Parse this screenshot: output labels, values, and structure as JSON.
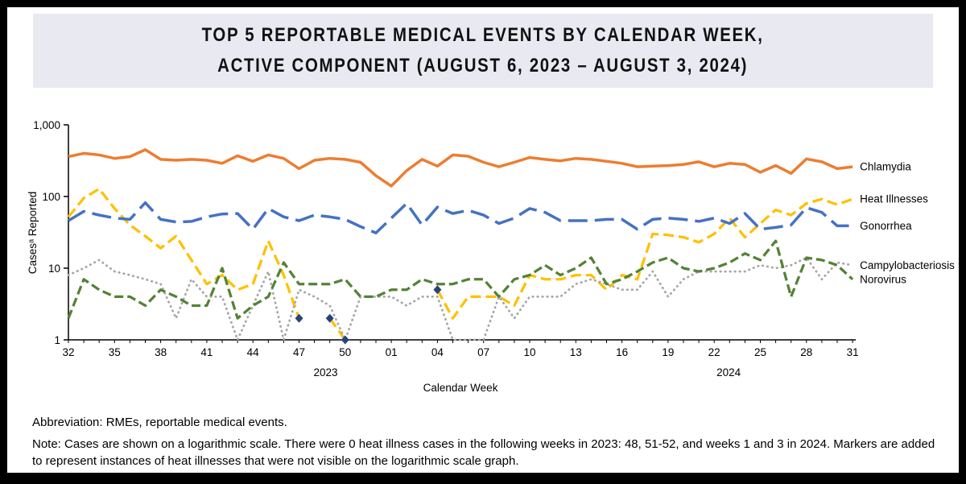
{
  "title": {
    "line1": "TOP 5 REPORTABLE MEDICAL EVENTS BY CALENDAR WEEK,",
    "line2": "ACTIVE COMPONENT (AUGUST 6, 2023 – AUGUST 3, 2024)"
  },
  "footnotes": {
    "abbreviation": "Abbreviation: RMEs, reportable medical events.",
    "note": "Note: Cases are shown on a logarithmic scale. There were 0 heat illness cases in the following weeks in 2023: 48, 51-52, and weeks 1 and 3 in 2024. Markers are added to represent instances of heat illnesses that were not visible on the logarithmic scale graph."
  },
  "theme": {
    "banner_bg": "#E9E9F1",
    "frame_color": "#000000"
  },
  "chart_data": {
    "type": "line",
    "y_scale": "log10",
    "ylim": [
      1,
      1000
    ],
    "grid": false,
    "legend_position": "right-end-of-line",
    "ylabel": "Casesᵃ Reported",
    "xlabel": "Calendar Week",
    "y_tick_labels": [
      "1,000",
      "100",
      "10",
      "1"
    ],
    "y_tick_values": [
      1000,
      100,
      10,
      1
    ],
    "x_tick_every": 3,
    "year_labels": [
      "2023",
      "2024"
    ],
    "categories": [
      "32",
      "33",
      "34",
      "35",
      "36",
      "37",
      "38",
      "39",
      "40",
      "41",
      "42",
      "43",
      "44",
      "45",
      "46",
      "47",
      "48",
      "49",
      "50",
      "51",
      "52",
      "01",
      "02",
      "03",
      "04",
      "05",
      "06",
      "07",
      "08",
      "09",
      "10",
      "11",
      "12",
      "13",
      "14",
      "15",
      "16",
      "17",
      "18",
      "19",
      "20",
      "21",
      "22",
      "23",
      "24",
      "25",
      "26",
      "27",
      "28",
      "29",
      "30",
      "31"
    ],
    "series": [
      {
        "name": "Chlamydia",
        "color": "#ED7D31",
        "dash": "",
        "width": 3.5,
        "linecap": "butt",
        "values": [
          360,
          400,
          380,
          340,
          360,
          450,
          330,
          320,
          330,
          320,
          290,
          370,
          310,
          380,
          340,
          245,
          320,
          340,
          330,
          300,
          195,
          140,
          230,
          330,
          265,
          380,
          365,
          300,
          260,
          300,
          350,
          330,
          315,
          340,
          330,
          310,
          290,
          260,
          265,
          270,
          280,
          305,
          260,
          290,
          280,
          218,
          270,
          210,
          335,
          305,
          245,
          260
        ]
      },
      {
        "name": "Heat Illnesses",
        "color": "#FFC000",
        "dash": "13 6",
        "width": 3.25,
        "linecap": "butt",
        "values": [
          52,
          95,
          128,
          68,
          40,
          28,
          19,
          28,
          13,
          6,
          8,
          5,
          6,
          24,
          8,
          2,
          null,
          2,
          1,
          null,
          null,
          null,
          null,
          null,
          5,
          2,
          4,
          4,
          4,
          3,
          8,
          7,
          7,
          8,
          8,
          5,
          8,
          7,
          30,
          29,
          27,
          23,
          30,
          50,
          27,
          42,
          65,
          55,
          80,
          92,
          77,
          92
        ]
      },
      {
        "name": "Gonorrhea",
        "color": "#4472C4",
        "dash": "24 9",
        "width": 3.5,
        "linecap": "butt",
        "values": [
          46,
          62,
          55,
          50,
          48,
          82,
          48,
          44,
          45,
          52,
          57,
          58,
          35,
          68,
          52,
          46,
          55,
          52,
          48,
          38,
          31,
          50,
          80,
          40,
          71,
          58,
          64,
          55,
          42,
          50,
          68,
          60,
          46,
          46,
          46,
          48,
          48,
          35,
          48,
          50,
          48,
          45,
          50,
          42,
          58,
          35,
          37,
          40,
          70,
          60,
          39,
          39
        ]
      },
      {
        "name": "Campylobacteriosis",
        "color": "#A6A6A6",
        "dash": "0.5 5.5",
        "width": 2.75,
        "linecap": "round",
        "values": [
          8,
          10,
          13,
          9,
          8,
          7,
          6,
          2,
          7,
          4,
          4,
          1,
          3,
          9,
          1,
          5,
          4,
          3,
          1,
          4,
          4,
          4,
          3,
          4,
          4,
          1,
          1,
          1,
          4,
          2,
          4,
          4,
          4,
          6,
          7,
          6,
          5,
          5,
          9,
          4,
          7,
          9,
          9,
          9,
          9,
          11,
          10,
          11,
          14,
          7,
          12,
          11
        ]
      },
      {
        "name": "Norovirus",
        "color": "#548235",
        "dash": "11 5",
        "width": 3.25,
        "linecap": "butt",
        "values": [
          2,
          7,
          5,
          4,
          4,
          3,
          5,
          4,
          3,
          3,
          10,
          2,
          3,
          4,
          12,
          6,
          6,
          6,
          7,
          4,
          4,
          5,
          5,
          7,
          6,
          6,
          7,
          7,
          4,
          7,
          8,
          11,
          8,
          10,
          14,
          6,
          7,
          9,
          12,
          14,
          10,
          9,
          10,
          12,
          16,
          13,
          24,
          4,
          14,
          13,
          11,
          7
        ]
      }
    ],
    "markers": {
      "label": "Heat illness instances not visible on log scale",
      "shape": "diamond",
      "color": "#264478",
      "points": [
        {
          "week": "47",
          "year": 2023,
          "value": 2
        },
        {
          "week": "49",
          "year": 2023,
          "value": 2
        },
        {
          "week": "50",
          "year": 2023,
          "value": 1
        },
        {
          "week": "04",
          "year": 2024,
          "value": 5
        }
      ]
    }
  }
}
